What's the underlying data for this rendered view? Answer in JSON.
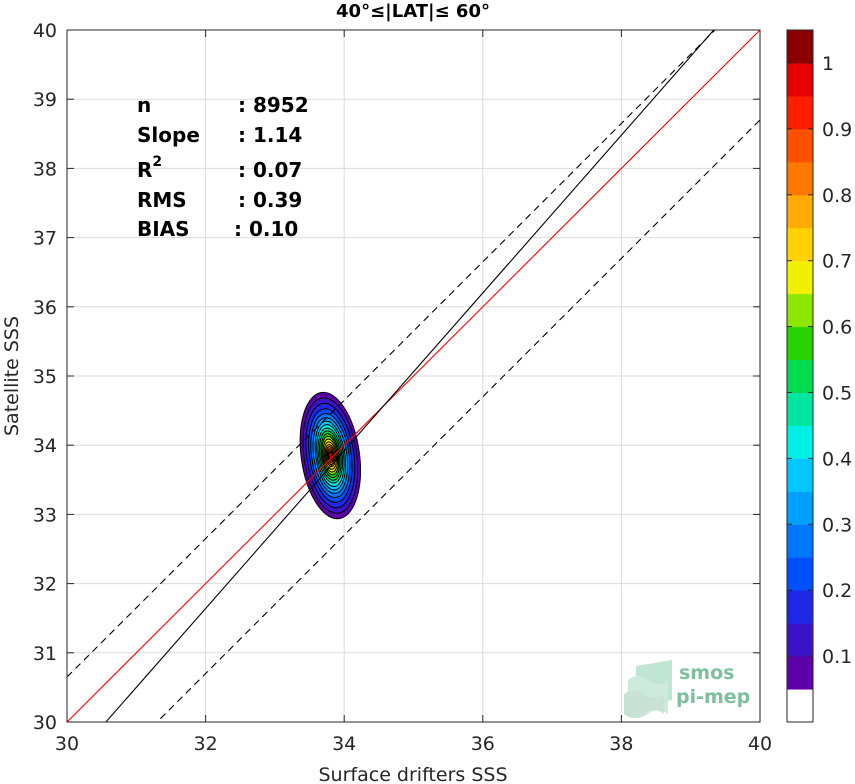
{
  "chart_data": {
    "type": "contour",
    "title": "40°≤|LAT|≤ 60°",
    "xlabel": "Surface drifters SSS",
    "ylabel": "Satellite SSS",
    "xlim": [
      30,
      40
    ],
    "ylim": [
      30,
      40
    ],
    "xticks": [
      "30",
      "32",
      "34",
      "36",
      "38",
      "40"
    ],
    "yticks": [
      "30",
      "31",
      "32",
      "33",
      "34",
      "35",
      "36",
      "37",
      "38",
      "39",
      "40"
    ],
    "grid": true,
    "stats": [
      {
        "label": "n",
        "value": ": 8952"
      },
      {
        "label": "Slope",
        "value": ": 1.14"
      },
      {
        "label": "R",
        "sup": "2",
        "value": ": 0.07"
      },
      {
        "label": "RMS",
        "value": ": 0.39"
      },
      {
        "label": "BIAS",
        "value": ": 0.10"
      }
    ],
    "lines": [
      {
        "name": "one-to-one",
        "color": "#ff0000",
        "style": "solid",
        "slope": 1,
        "intercept": 0
      },
      {
        "name": "fit",
        "color": "#000000",
        "style": "solid",
        "slope": 1.14,
        "intercept": -4.84
      },
      {
        "name": "upper-bound",
        "color": "#000000",
        "style": "dashed",
        "slope": 1,
        "intercept": 0.65
      },
      {
        "name": "lower-bound",
        "color": "#000000",
        "style": "dashed",
        "slope": 1,
        "intercept": -1.3
      }
    ],
    "density_peak": {
      "x": 33.8,
      "y": 33.85
    },
    "contours": [
      {
        "level": 0.05,
        "rx": 0.42,
        "ry": 0.92
      },
      {
        "level": 0.1,
        "rx": 0.38,
        "ry": 0.84
      },
      {
        "level": 0.15,
        "rx": 0.34,
        "ry": 0.76
      },
      {
        "level": 0.2,
        "rx": 0.3,
        "ry": 0.68
      },
      {
        "level": 0.25,
        "rx": 0.27,
        "ry": 0.61
      },
      {
        "level": 0.3,
        "rx": 0.24,
        "ry": 0.55
      },
      {
        "level": 0.35,
        "rx": 0.21,
        "ry": 0.5
      },
      {
        "level": 0.4,
        "rx": 0.19,
        "ry": 0.45
      },
      {
        "level": 0.45,
        "rx": 0.17,
        "ry": 0.4
      },
      {
        "level": 0.5,
        "rx": 0.15,
        "ry": 0.36
      },
      {
        "level": 0.55,
        "rx": 0.13,
        "ry": 0.32
      },
      {
        "level": 0.6,
        "rx": 0.115,
        "ry": 0.28
      },
      {
        "level": 0.65,
        "rx": 0.1,
        "ry": 0.24
      },
      {
        "level": 0.7,
        "rx": 0.085,
        "ry": 0.2
      },
      {
        "level": 0.75,
        "rx": 0.07,
        "ry": 0.16
      },
      {
        "level": 0.8,
        "rx": 0.055,
        "ry": 0.13
      },
      {
        "level": 0.85,
        "rx": 0.04,
        "ry": 0.1
      },
      {
        "level": 0.9,
        "rx": 0.03,
        "ry": 0.07
      },
      {
        "level": 0.95,
        "rx": 0.02,
        "ry": 0.045
      }
    ],
    "colorbar": {
      "ticks": [
        "0.1",
        "0.2",
        "0.3",
        "0.4",
        "0.5",
        "0.6",
        "0.7",
        "0.8",
        "0.9",
        "1"
      ],
      "colors": [
        "#ffffff",
        "#5e00aa",
        "#3c14c8",
        "#1e28e6",
        "#0050ff",
        "#0078ff",
        "#00a0ff",
        "#00c8ff",
        "#00f0e6",
        "#00e6a0",
        "#00dc50",
        "#28d200",
        "#8ce600",
        "#f0f000",
        "#ffd200",
        "#ffaa00",
        "#ff7800",
        "#ff5000",
        "#ff1e00",
        "#e60000",
        "#8c0000"
      ]
    }
  },
  "watermark": {
    "line1": "smos",
    "line2": "pi-mep"
  }
}
